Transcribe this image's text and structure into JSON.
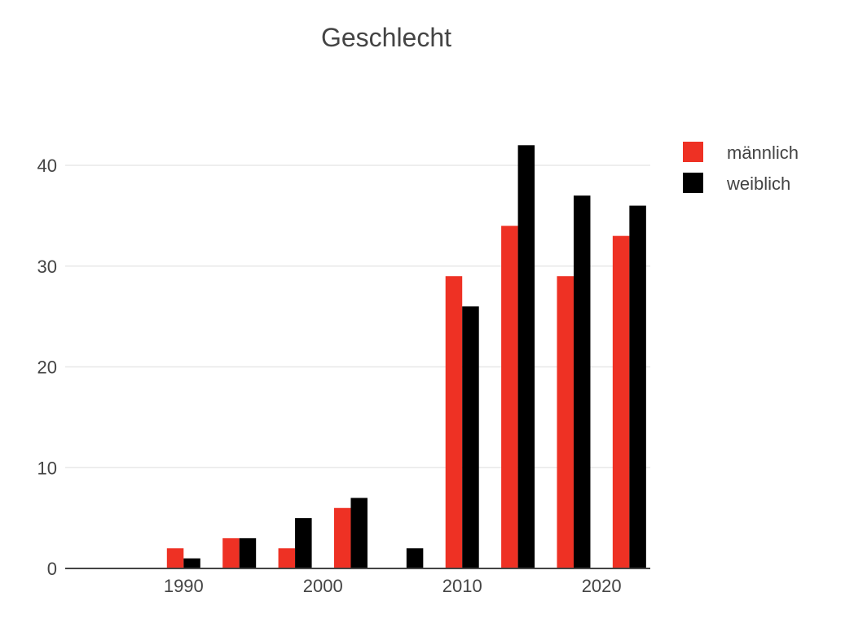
{
  "chart_data": {
    "type": "bar",
    "title": "Geschlecht",
    "xlabel": "",
    "ylabel": "",
    "x": [
      1990,
      1994,
      1998,
      2002,
      2006,
      2010,
      2014,
      2018,
      2022
    ],
    "series": [
      {
        "name": "männlich",
        "color": "#ee3124",
        "values": [
          2,
          3,
          2,
          6,
          0,
          29,
          34,
          29,
          33
        ]
      },
      {
        "name": "weiblich",
        "color": "#000000",
        "values": [
          1,
          3,
          5,
          7,
          2,
          26,
          42,
          37,
          36
        ]
      }
    ],
    "xlim": [
      1981.5,
      2023.5
    ],
    "ylim": [
      0,
      45.5
    ],
    "x_ticks": [
      1990,
      2000,
      2010,
      2020
    ],
    "y_ticks": [
      0,
      10,
      20,
      30,
      40
    ],
    "grid": "horizontal",
    "legend_position": "top-right"
  }
}
